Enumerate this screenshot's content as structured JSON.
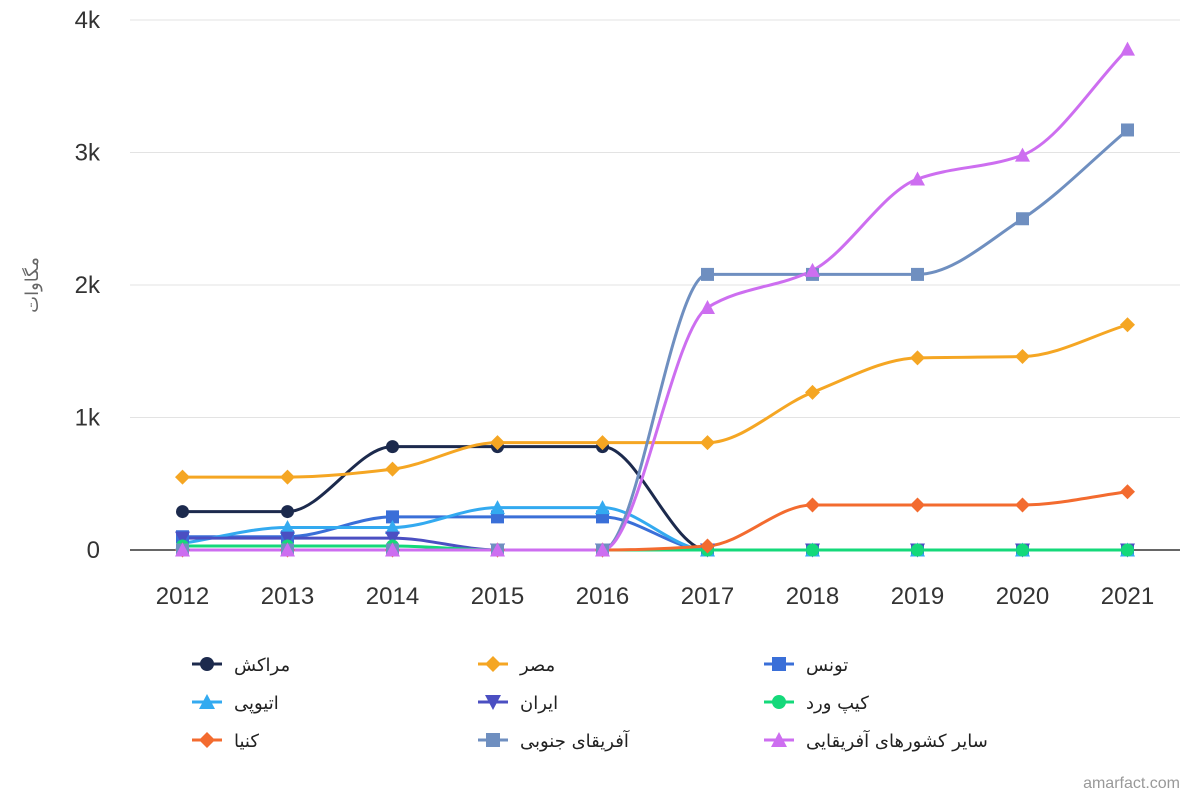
{
  "credit": "amarfact.com",
  "chart_data": {
    "type": "line",
    "title": "",
    "xlabel": "",
    "ylabel": "مگاوات",
    "ylim": [
      0,
      4000
    ],
    "y_ticks": [
      {
        "value": 0,
        "label": "0"
      },
      {
        "value": 1000,
        "label": "1k"
      },
      {
        "value": 2000,
        "label": "2k"
      },
      {
        "value": 3000,
        "label": "3k"
      },
      {
        "value": 4000,
        "label": "4k"
      }
    ],
    "categories": [
      "2012",
      "2013",
      "2014",
      "2015",
      "2016",
      "2017",
      "2018",
      "2019",
      "2020",
      "2021"
    ],
    "grid": "horizontal",
    "legend_position": "bottom",
    "series": [
      {
        "name": "مراکش",
        "color": "#1c2a4d",
        "marker": "circle",
        "values": [
          290,
          290,
          780,
          780,
          780,
          0,
          0,
          0,
          0,
          0
        ]
      },
      {
        "name": "مصر",
        "color": "#f5a623",
        "marker": "diamond",
        "values": [
          550,
          550,
          610,
          810,
          810,
          810,
          1190,
          1450,
          1460,
          1700
        ]
      },
      {
        "name": "تونس",
        "color": "#3a6fd8",
        "marker": "square",
        "values": [
          100,
          100,
          250,
          250,
          250,
          0,
          0,
          0,
          0,
          0
        ]
      },
      {
        "name": "اتیوپی",
        "color": "#33aaf0",
        "marker": "triangle-up",
        "values": [
          50,
          170,
          170,
          320,
          320,
          0,
          0,
          0,
          0,
          0
        ]
      },
      {
        "name": "ایران",
        "color": "#4b4fc2",
        "marker": "triangle-down",
        "values": [
          90,
          90,
          90,
          0,
          0,
          0,
          0,
          0,
          0,
          0
        ]
      },
      {
        "name": "کیپ ورد",
        "color": "#14d97a",
        "marker": "circle",
        "values": [
          30,
          30,
          30,
          0,
          0,
          0,
          0,
          0,
          0,
          0
        ]
      },
      {
        "name": "کنیا",
        "color": "#f36b2f",
        "marker": "diamond",
        "values": [
          0,
          0,
          0,
          0,
          0,
          30,
          340,
          340,
          340,
          440
        ]
      },
      {
        "name": "آفریقای جنوبی",
        "color": "#6f8fc0",
        "marker": "square",
        "values": [
          0,
          0,
          0,
          0,
          0,
          2080,
          2080,
          2080,
          2500,
          3170
        ]
      },
      {
        "name": "سایر کشورهای آفریقایی",
        "color": "#cd6ef0",
        "marker": "triangle-up",
        "values": [
          0,
          0,
          0,
          0,
          0,
          1830,
          2110,
          2800,
          2980,
          3780
        ]
      }
    ]
  }
}
